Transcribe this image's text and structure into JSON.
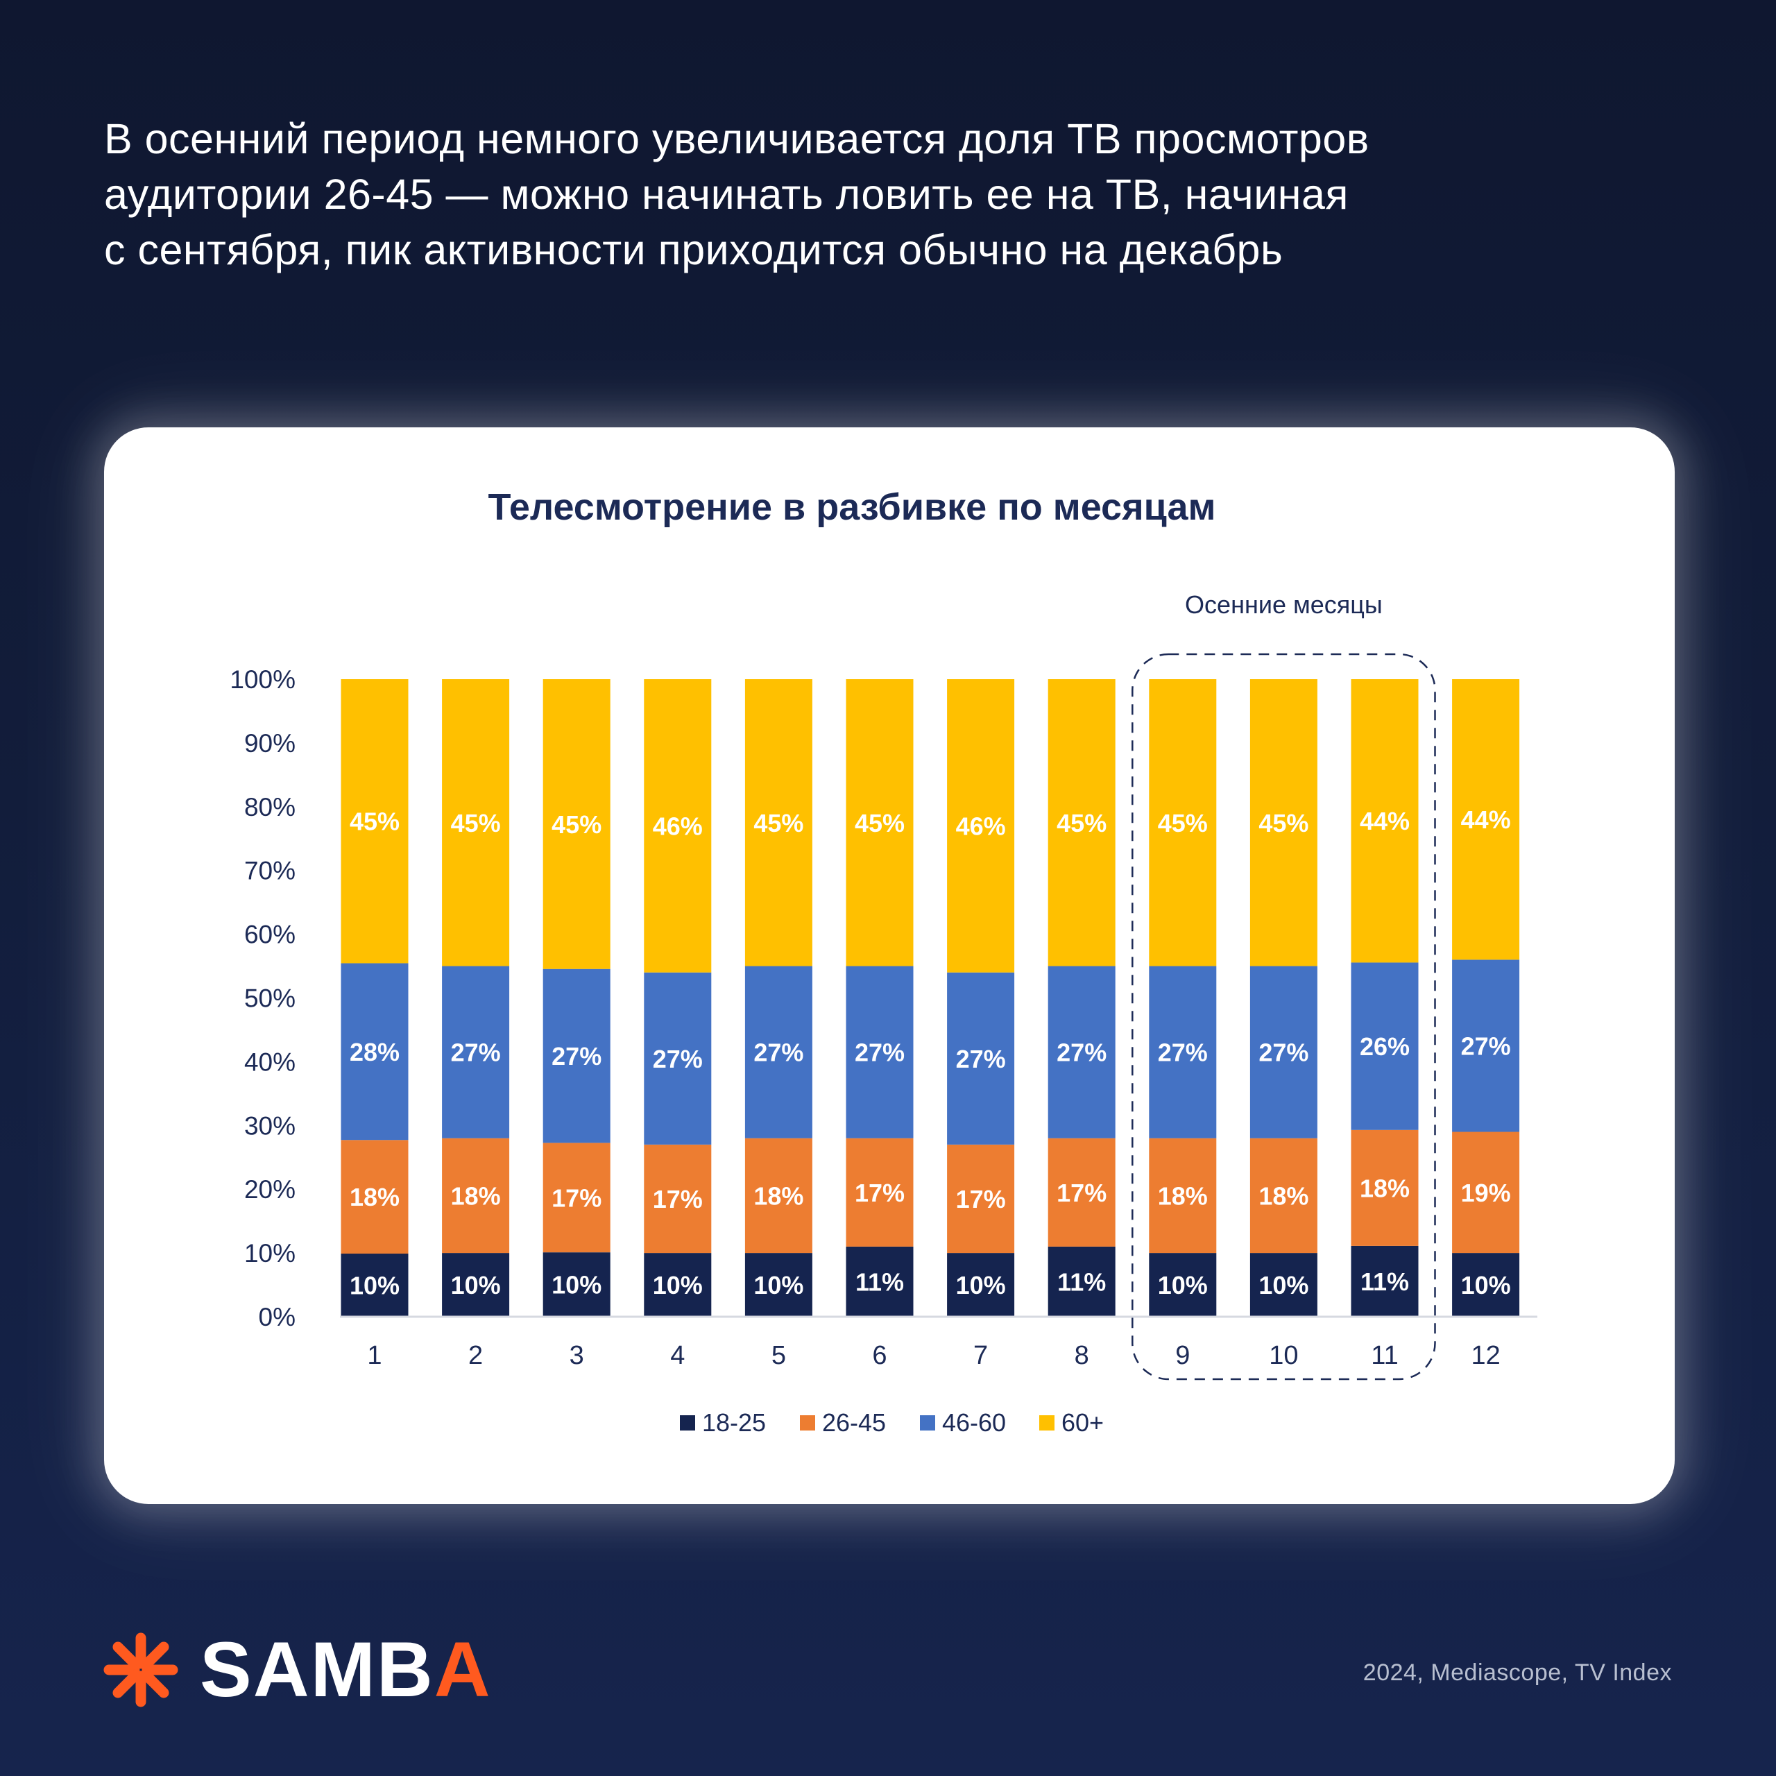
{
  "headline": {
    "line1": "В осенний период немного увеличивается доля ТВ просмотров",
    "line2": "аудитории 26-45 — можно начинать ловить ее на ТВ, начиная",
    "line3": "с сентября, пик активности приходится обычно на декабрь"
  },
  "brand": {
    "name_main": "SAMB",
    "name_accent": "A",
    "accent_color": "#ff5a1f",
    "icon": "asterisk-logo-icon"
  },
  "source": "2024, Mediascope, TV Index",
  "chart_data": {
    "type": "bar",
    "stacked": true,
    "title": "Телесмотрение в разбивке по месяцам",
    "annotation": "Осенние месяцы",
    "highlight_categories": [
      "9",
      "10",
      "11"
    ],
    "categories": [
      "1",
      "2",
      "3",
      "4",
      "5",
      "6",
      "7",
      "8",
      "9",
      "10",
      "11",
      "12"
    ],
    "ylim": [
      0,
      100
    ],
    "yticks": [
      "0%",
      "10%",
      "20%",
      "30%",
      "40%",
      "50%",
      "60%",
      "70%",
      "80%",
      "90%",
      "100%"
    ],
    "legend_position": "bottom",
    "grid": false,
    "series": [
      {
        "name": "18-25",
        "color": "#15244f",
        "values": [
          10,
          10,
          10,
          10,
          10,
          11,
          10,
          11,
          10,
          10,
          11,
          10
        ]
      },
      {
        "name": "26-45",
        "color": "#ed7d31",
        "values": [
          18,
          18,
          17,
          17,
          18,
          17,
          17,
          17,
          18,
          18,
          18,
          19
        ]
      },
      {
        "name": "46-60",
        "color": "#4472c4",
        "values": [
          28,
          27,
          27,
          27,
          27,
          27,
          27,
          27,
          27,
          27,
          26,
          27
        ]
      },
      {
        "name": "60+",
        "color": "#ffc000",
        "values": [
          45,
          45,
          45,
          46,
          45,
          45,
          46,
          45,
          45,
          45,
          44,
          44
        ]
      }
    ]
  }
}
